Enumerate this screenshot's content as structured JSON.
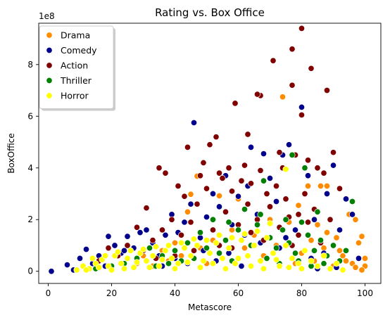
{
  "chart_data": {
    "type": "scatter",
    "title": "Rating vs. Box Office",
    "xlabel": "Metascore",
    "ylabel": "BoxOffice",
    "y_offset_label": "1e8",
    "xlim": [
      -3,
      105
    ],
    "ylim": [
      -0.47,
      9.6
    ],
    "x_ticks": [
      0,
      20,
      40,
      60,
      80,
      100
    ],
    "y_ticks": [
      0,
      2,
      4,
      6,
      8
    ],
    "grid": false,
    "legend_position": "top-left",
    "series": [
      {
        "name": "Drama",
        "color": "#ff8c00",
        "points": [
          [
            74,
            6.75
          ],
          [
            47,
            3.68
          ],
          [
            45,
            2.98
          ],
          [
            54,
            2.92
          ],
          [
            60,
            2.8
          ],
          [
            79,
            2.55
          ],
          [
            82,
            3.3
          ],
          [
            86,
            3.3
          ],
          [
            88,
            3.3
          ],
          [
            95,
            2.2
          ],
          [
            97,
            2.0
          ],
          [
            99,
            1.35
          ],
          [
            98,
            1.1
          ],
          [
            100,
            0.5
          ],
          [
            96,
            0.3
          ],
          [
            100,
            0.2
          ],
          [
            99,
            0.05
          ],
          [
            94,
            0.4
          ],
          [
            92,
            0.8
          ],
          [
            90,
            0.2
          ],
          [
            88,
            1.5
          ],
          [
            85,
            1.8
          ],
          [
            83,
            1.2
          ],
          [
            80,
            0.7
          ],
          [
            78,
            0.3
          ],
          [
            76,
            1.9
          ],
          [
            72,
            1.0
          ],
          [
            70,
            2.0
          ],
          [
            68,
            0.6
          ],
          [
            65,
            1.4
          ],
          [
            62,
            0.9
          ],
          [
            58,
            1.6
          ],
          [
            55,
            0.5
          ],
          [
            52,
            1.2
          ],
          [
            50,
            0.3
          ],
          [
            48,
            0.9
          ],
          [
            44,
            2.3
          ],
          [
            42,
            0.6
          ],
          [
            40,
            1.1
          ],
          [
            38,
            0.4
          ],
          [
            36,
            0.8
          ],
          [
            33,
            0.2
          ],
          [
            30,
            0.6
          ],
          [
            28,
            0.3
          ],
          [
            91,
            1.3
          ],
          [
            87,
            0.9
          ],
          [
            93,
            0.6
          ],
          [
            97,
            0.15
          ],
          [
            84,
            0.4
          ]
        ]
      },
      {
        "name": "Comedy",
        "color": "#00008b",
        "points": [
          [
            1,
            0.0
          ],
          [
            6,
            0.25
          ],
          [
            8,
            0.05
          ],
          [
            10,
            0.5
          ],
          [
            12,
            0.85
          ],
          [
            14,
            0.3
          ],
          [
            16,
            0.6
          ],
          [
            19,
            1.35
          ],
          [
            21,
            1.0
          ],
          [
            23,
            0.7
          ],
          [
            25,
            1.35
          ],
          [
            27,
            0.9
          ],
          [
            29,
            1.5
          ],
          [
            31,
            1.6
          ],
          [
            33,
            1.1
          ],
          [
            35,
            0.6
          ],
          [
            37,
            1.4
          ],
          [
            39,
            2.2
          ],
          [
            41,
            1.5
          ],
          [
            43,
            1.9
          ],
          [
            45,
            2.6
          ],
          [
            46,
            5.75
          ],
          [
            48,
            1.3
          ],
          [
            50,
            2.1
          ],
          [
            52,
            3.0
          ],
          [
            54,
            2.5
          ],
          [
            56,
            3.7
          ],
          [
            58,
            1.8
          ],
          [
            60,
            2.9
          ],
          [
            62,
            1.4
          ],
          [
            64,
            4.8
          ],
          [
            66,
            2.2
          ],
          [
            68,
            4.55
          ],
          [
            70,
            3.6
          ],
          [
            72,
            2.7
          ],
          [
            74,
            4.5
          ],
          [
            76,
            4.9
          ],
          [
            78,
            1.6
          ],
          [
            80,
            6.35
          ],
          [
            82,
            3.7
          ],
          [
            84,
            2.0
          ],
          [
            86,
            1.2
          ],
          [
            88,
            3.0
          ],
          [
            90,
            4.1
          ],
          [
            92,
            1.6
          ],
          [
            94,
            2.8
          ],
          [
            96,
            2.2
          ],
          [
            98,
            0.5
          ],
          [
            91,
            0.15
          ],
          [
            85,
            0.1
          ],
          [
            79,
            0.3
          ],
          [
            73,
            0.9
          ],
          [
            67,
            1.1
          ],
          [
            61,
            0.2
          ],
          [
            57,
            0.7
          ],
          [
            53,
            0.4
          ],
          [
            49,
            0.8
          ],
          [
            44,
            0.3
          ],
          [
            40,
            0.5
          ],
          [
            36,
            0.2
          ],
          [
            32,
            0.9
          ],
          [
            28,
            0.4
          ],
          [
            24,
            0.8
          ],
          [
            18,
            0.2
          ],
          [
            13,
            0.1
          ],
          [
            87,
            0.7
          ],
          [
            83,
            0.5
          ],
          [
            75,
            1.3
          ],
          [
            69,
            0.5
          ],
          [
            63,
            3.3
          ]
        ]
      },
      {
        "name": "Action",
        "color": "#800000",
        "points": [
          [
            80,
            9.4
          ],
          [
            77,
            8.6
          ],
          [
            83,
            7.85
          ],
          [
            71,
            8.15
          ],
          [
            77,
            7.2
          ],
          [
            88,
            7.0
          ],
          [
            67,
            6.8
          ],
          [
            66,
            6.85
          ],
          [
            59,
            6.5
          ],
          [
            80,
            6.05
          ],
          [
            63,
            5.3
          ],
          [
            53,
            5.2
          ],
          [
            51,
            4.9
          ],
          [
            44,
            4.8
          ],
          [
            49,
            4.2
          ],
          [
            73,
            4.6
          ],
          [
            78,
            4.5
          ],
          [
            82,
            4.3
          ],
          [
            90,
            4.6
          ],
          [
            85,
            4.0
          ],
          [
            74,
            4.0
          ],
          [
            62,
            4.1
          ],
          [
            57,
            4.0
          ],
          [
            54,
            3.8
          ],
          [
            48,
            3.7
          ],
          [
            35,
            4.0
          ],
          [
            37,
            3.8
          ],
          [
            41,
            3.3
          ],
          [
            43,
            2.9
          ],
          [
            47,
            2.6
          ],
          [
            50,
            3.2
          ],
          [
            55,
            3.6
          ],
          [
            58,
            3.1
          ],
          [
            61,
            3.5
          ],
          [
            64,
            3.4
          ],
          [
            67,
            3.9
          ],
          [
            69,
            3.0
          ],
          [
            72,
            3.3
          ],
          [
            75,
            2.8
          ],
          [
            79,
            2.2
          ],
          [
            81,
            3.0
          ],
          [
            84,
            2.4
          ],
          [
            87,
            3.8
          ],
          [
            89,
            2.0
          ],
          [
            31,
            2.45
          ],
          [
            28,
            1.7
          ],
          [
            25,
            1.0
          ],
          [
            22,
            0.6
          ],
          [
            19,
            0.9
          ],
          [
            16,
            0.4
          ],
          [
            33,
            1.2
          ],
          [
            36,
            1.6
          ],
          [
            39,
            2.0
          ],
          [
            42,
            1.4
          ],
          [
            45,
            1.9
          ],
          [
            52,
            1.6
          ],
          [
            56,
            2.3
          ],
          [
            60,
            1.8
          ],
          [
            63,
            2.6
          ],
          [
            66,
            2.0
          ],
          [
            70,
            2.5
          ],
          [
            73,
            1.7
          ],
          [
            76,
            2.1
          ],
          [
            79,
            1.4
          ],
          [
            82,
            1.9
          ],
          [
            86,
            1.1
          ],
          [
            92,
            3.2
          ],
          [
            68,
            1.2
          ],
          [
            58,
            0.9
          ],
          [
            46,
            0.8
          ],
          [
            40,
            0.6
          ],
          [
            34,
            0.5
          ],
          [
            30,
            0.8
          ],
          [
            54,
            1.0
          ],
          [
            64,
            1.5
          ],
          [
            71,
            0.7
          ],
          [
            77,
            1.0
          ]
        ]
      },
      {
        "name": "Thriller",
        "color": "#008000",
        "points": [
          [
            77,
            4.5
          ],
          [
            68,
            3.5
          ],
          [
            81,
            4.0
          ],
          [
            85,
            2.3
          ],
          [
            96,
            2.7
          ],
          [
            62,
            2.4
          ],
          [
            57,
            1.9
          ],
          [
            52,
            2.0
          ],
          [
            48,
            1.5
          ],
          [
            44,
            1.1
          ],
          [
            40,
            0.8
          ],
          [
            36,
            0.6
          ],
          [
            32,
            0.9
          ],
          [
            28,
            0.5
          ],
          [
            24,
            0.3
          ],
          [
            20,
            0.2
          ],
          [
            15,
            0.1
          ],
          [
            56,
            1.2
          ],
          [
            60,
            1.6
          ],
          [
            64,
            1.0
          ],
          [
            66,
            1.8
          ],
          [
            70,
            1.3
          ],
          [
            72,
            0.9
          ],
          [
            74,
            1.6
          ],
          [
            76,
            1.1
          ],
          [
            78,
            0.7
          ],
          [
            80,
            1.9
          ],
          [
            82,
            1.4
          ],
          [
            84,
            0.8
          ],
          [
            86,
            1.2
          ],
          [
            88,
            0.6
          ],
          [
            90,
            1.0
          ],
          [
            92,
            0.4
          ],
          [
            94,
            0.8
          ],
          [
            54,
            0.7
          ],
          [
            50,
            0.9
          ],
          [
            46,
            0.5
          ],
          [
            42,
            0.4
          ],
          [
            38,
            0.3
          ],
          [
            34,
            0.2
          ],
          [
            58,
            0.4
          ],
          [
            63,
            0.6
          ],
          [
            69,
            0.5
          ],
          [
            73,
            0.3
          ],
          [
            79,
            0.4
          ],
          [
            83,
            0.2
          ],
          [
            87,
            0.3
          ],
          [
            67,
            2.2
          ],
          [
            75,
            2.0
          ]
        ]
      },
      {
        "name": "Horror",
        "color": "#ffff00",
        "points": [
          [
            9,
            0.05
          ],
          [
            11,
            0.2
          ],
          [
            13,
            0.1
          ],
          [
            15,
            0.3
          ],
          [
            17,
            0.45
          ],
          [
            19,
            0.2
          ],
          [
            21,
            0.6
          ],
          [
            23,
            0.3
          ],
          [
            25,
            0.5
          ],
          [
            27,
            0.15
          ],
          [
            29,
            0.7
          ],
          [
            31,
            0.4
          ],
          [
            33,
            0.6
          ],
          [
            35,
            0.2
          ],
          [
            37,
            0.8
          ],
          [
            39,
            0.5
          ],
          [
            41,
            0.3
          ],
          [
            43,
            0.9
          ],
          [
            45,
            0.6
          ],
          [
            47,
            1.0
          ],
          [
            49,
            0.4
          ],
          [
            51,
            0.7
          ],
          [
            53,
            1.1
          ],
          [
            55,
            0.5
          ],
          [
            57,
            0.9
          ],
          [
            59,
            0.3
          ],
          [
            61,
            1.2
          ],
          [
            63,
            0.6
          ],
          [
            65,
            1.0
          ],
          [
            67,
            0.4
          ],
          [
            69,
            1.3
          ],
          [
            71,
            0.7
          ],
          [
            73,
            0.2
          ],
          [
            75,
            1.0
          ],
          [
            77,
            0.5
          ],
          [
            79,
            0.3
          ],
          [
            81,
            0.8
          ],
          [
            83,
            0.4
          ],
          [
            85,
            0.2
          ],
          [
            87,
            0.6
          ],
          [
            89,
            0.1
          ],
          [
            91,
            0.3
          ],
          [
            93,
            0.05
          ],
          [
            75,
            3.95
          ],
          [
            70,
            1.85
          ],
          [
            66,
            1.55
          ],
          [
            62,
            1.45
          ],
          [
            58,
            1.3
          ],
          [
            54,
            1.4
          ],
          [
            50,
            1.2
          ],
          [
            46,
            1.25
          ],
          [
            42,
            1.1
          ],
          [
            38,
            1.0
          ],
          [
            34,
            0.95
          ],
          [
            30,
            0.85
          ],
          [
            26,
            0.8
          ],
          [
            22,
            0.75
          ],
          [
            18,
            0.6
          ],
          [
            14,
            0.5
          ],
          [
            24,
            0.1
          ],
          [
            28,
            0.35
          ],
          [
            32,
            0.15
          ],
          [
            36,
            0.45
          ],
          [
            40,
            0.1
          ],
          [
            44,
            0.35
          ],
          [
            48,
            0.15
          ],
          [
            52,
            0.3
          ],
          [
            56,
            0.1
          ],
          [
            60,
            0.5
          ],
          [
            64,
            0.2
          ],
          [
            68,
            0.1
          ],
          [
            72,
            0.45
          ],
          [
            76,
            0.15
          ],
          [
            80,
            0.1
          ],
          [
            20,
            0.05
          ],
          [
            16,
            0.15
          ],
          [
            12,
            0.05
          ]
        ]
      }
    ]
  }
}
